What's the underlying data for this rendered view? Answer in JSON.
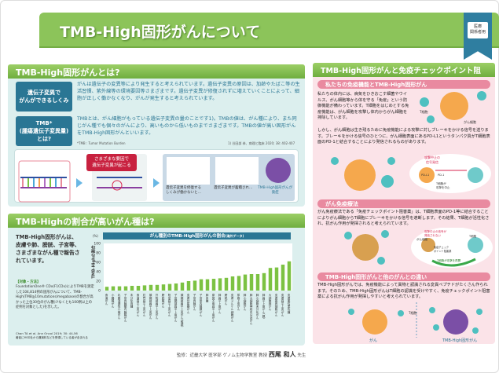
{
  "header": {
    "title": "TMB-High固形がんについて",
    "badge": "医療\n関係者用"
  },
  "section1": {
    "title": "TMB-High固形がんとは?",
    "rows": [
      {
        "label": "遺伝子変異で\nがんができるしくみ",
        "text": "がんは遺伝子の変異等により発生すると考えられています。遺伝子変異の原因は、加齢やたばこ等の生活習慣、紫外線等の環境要因等さまざまです。遺伝子変異が修復されずに増えていくことによって、細胞が正しく働かなくなり、がんが発生すると考えられています。"
      },
      {
        "label": "TMB*\n(腫瘍遺伝子変異量)\nとは?",
        "text": "TMBとは、がん細胞がもっている遺伝子変異の量のことです1)。TMBの値は、がん種により、また同じがん種でも個々のがんにより、高いものから低いものまでさまざまです。TMBの値が高い固形がんをTMB-High固形がんといいます。"
      }
    ],
    "footnote": "*TMB : Tumor Mutation Burden",
    "reference": "1) 谷田部 恭、病理と臨床 2020; 38: 402-407",
    "illustration": {
      "callout": "さまざまな要因で\n遺伝子変異が起こる",
      "step1": "遺伝子変異を修復する\nしくみが働かないと…",
      "step2": "遺伝子変異が蓄積され…",
      "step3": "TMB-High固形がんが\n発症"
    }
  },
  "section2": {
    "title": "TMB-Highの割合が高いがん種は?",
    "lead": "TMB-High固形がんは、皮膚や肺、膀胱、子宮等、さまざまながん種で報告されています。",
    "method_title": "【対象・方法】",
    "method": "FoundationOne® CDx(F1CDx)によりTMBを測定した104,814例の固形がんについて、TMB-High(TMB≧10mutations/megabase)の割合が高かった上位30位のがん種(少なくとも100例以上の症例を対象とした)を示した。",
    "citation": "Chan TA et al. Ann Oncol 2019; 30: 44-56",
    "citation_note": "著者にMSD社から講演料などを受領している者が含まれる"
  },
  "chart_data": {
    "type": "bar",
    "title": "がん種別のTMB-High固形がんの割合",
    "subtitle": "(海外データ)",
    "ylabel": "TMB-Highの割合",
    "yunit": "(%)",
    "ylim": [
      0,
      100
    ],
    "yticks": [
      0,
      20,
      40,
      60,
      80,
      100
    ],
    "color": "#7cc242",
    "categories": [
      "食道がん",
      "小腸腺がん",
      "乳腺浸潤性小葉がん",
      "子宮内膜類内膜腺がん",
      "未分化肉腫",
      "食道扁平上皮がん",
      "肛門扁平上皮がん",
      "頭頸部扁平上皮がん",
      "外陰部扁平上皮がん",
      "膀胱腺がん",
      "陰茎扁平上皮がん",
      "子宮頸部扁平上皮がん",
      "頭頸部扁平上皮がん(喉頭)",
      "皮膚付属器がん",
      "子宮内膜がん",
      "子宮体内膜腺がん",
      "肺肉腫",
      "原発不明扁平上皮がん",
      "肺扁平上皮がん",
      "膀胱がん",
      "皮膚メルケル細胞がん",
      "尿路上皮がん",
      "肺小細胞がん",
      "肺大細胞神経内分泌がん",
      "肺小細胞未分化がん",
      "肺扁平上皮がん(腺)",
      "大細胞肺がん",
      "皮膚基底細胞がん",
      "皮膚扁平上皮がん",
      "皮膚悪性黒色腫"
    ],
    "values": [
      8,
      9,
      9,
      9,
      10,
      10,
      11,
      12,
      12,
      13,
      14,
      15,
      17,
      20,
      21,
      24,
      24,
      25,
      26,
      27,
      30,
      31,
      34,
      35,
      35,
      37,
      48,
      49,
      55,
      62
    ]
  },
  "section3": {
    "title": "TMB-High固形がんと免疫チェックポイント阻害薬",
    "sub1": {
      "title": "私たちの免疫機能とTMB-High固形がん",
      "text1": "私たちの体内には、病気をひきおこす細菌やウイルス、がん細胞等から体を守る「免疫」という防御機能が備わっています。T細胞をはじめとする免疫機能は、がん細胞を攻撃し体内からがん細胞を排除しています。",
      "text2": "しかし、がん細胞は生き残るために免疫機能による攻撃に対しブレーキをかける信号を送ります。ブレーキをかける信号のひとつに、がん細胞表面にあるPD-L1というタンパク質がT細胞表面のPD-1と結合することにより発信されるものがあります。",
      "tcell": "T細胞",
      "cancer": "がん細胞",
      "signal": "攻撃中止の\n信号発信",
      "pdl1": "PD-L1",
      "pd1": "PD-1",
      "stop": "T細胞が\n攻撃を中止"
    },
    "sub2": {
      "title": "がん免疫療法",
      "text": "がん免疫療法である「免疫チェックポイント阻害薬」は、T細胞表面のPD-1等に結合することによりがん細胞からT細胞にブレーキをかける信号を遮断します。その結果、T細胞が活性化され、抗がん作用が発揮されると考えられています。",
      "blocked": "攻撃中止の信号が\n発信されない",
      "drug": "免疫チェック\nポイント阻害薬",
      "resume": "T細胞が攻撃を再開",
      "cancer": "がん細胞",
      "tcell": "T細胞"
    },
    "sub3": {
      "title": "TMB-High固形がんと他のがんとの違い",
      "text": "TMB-High固形がんでは、免疫機能によって異物と認識される変異ペプチドがたくさん作られます。そのため、TMB-High固形がんはT細胞の認識を受けやすく、免疫チェックポイント阻害薬による抗がん作用が発揮しやすいと考えられています。",
      "left": "がん",
      "right": "TMB-High固形がん",
      "tcell": "T細胞"
    }
  },
  "footer": {
    "supervisor": "監修：近畿大学 医学部 ゲノム生物学教室 教授",
    "name": "西尾 和人",
    "suffix": "先生"
  }
}
